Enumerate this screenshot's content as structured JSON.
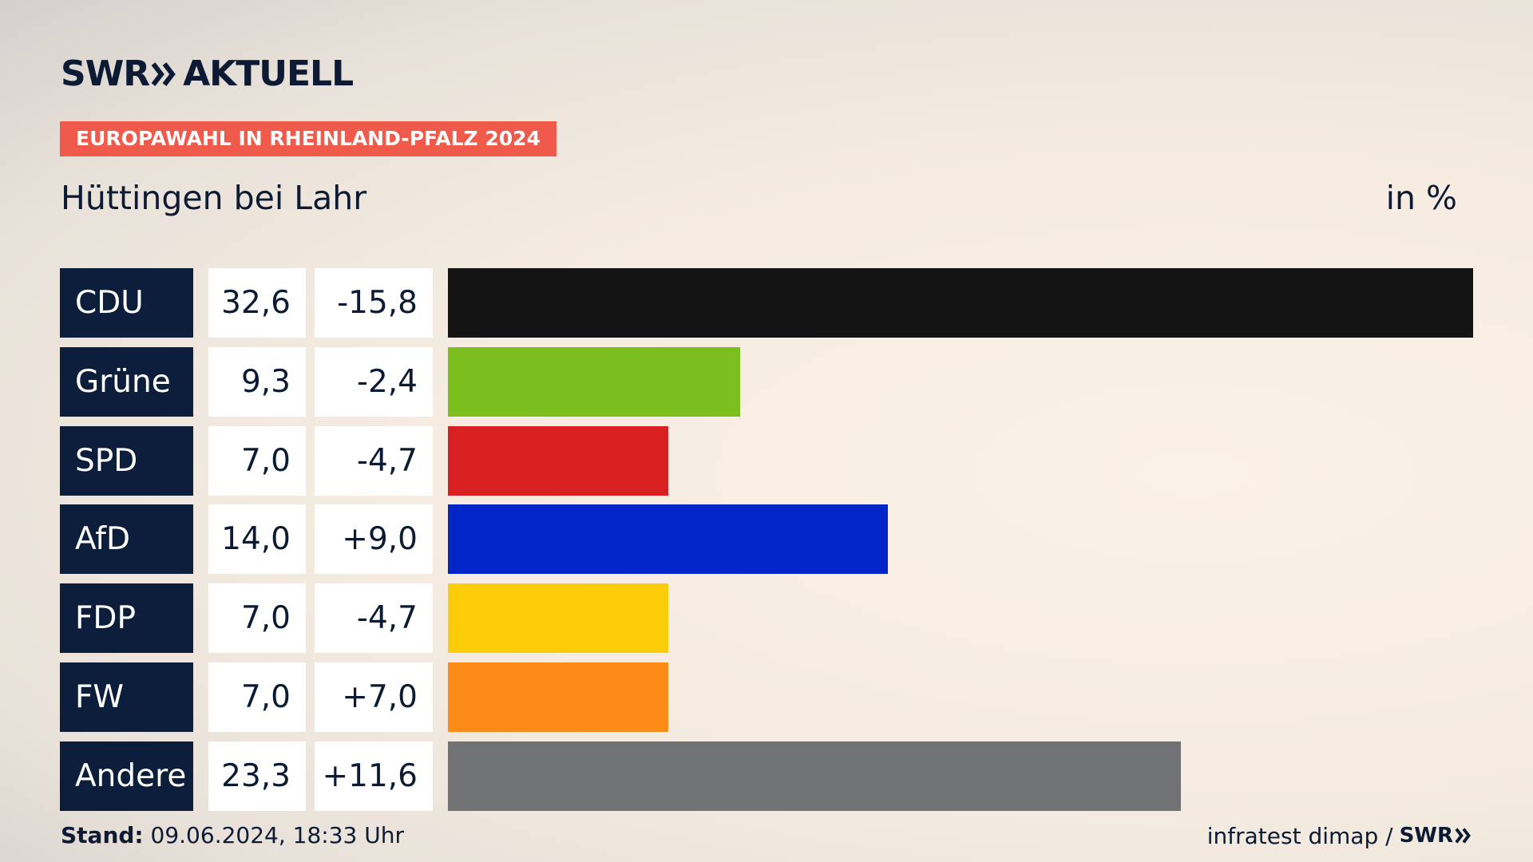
{
  "header": {
    "logo_text": "SWR",
    "logo_suffix": "AKTUELL",
    "badge": "EUROPAWAHL IN RHEINLAND-PFALZ 2024",
    "title": "Hüttingen bei Lahr",
    "unit": "in %"
  },
  "chart_data": {
    "type": "bar",
    "orientation": "horizontal",
    "title": "Hüttingen bei Lahr",
    "unit": "in %",
    "categories": [
      "CDU",
      "Grüne",
      "SPD",
      "AfD",
      "FDP",
      "FW",
      "Andere"
    ],
    "values": [
      32.6,
      9.3,
      7.0,
      14.0,
      7.0,
      7.0,
      23.3
    ],
    "value_labels": [
      "32,6",
      "9,3",
      "7,0",
      "14,0",
      "7,0",
      "7,0",
      "23,3"
    ],
    "changes": [
      -15.8,
      -2.4,
      -4.7,
      9.0,
      -4.7,
      7.0,
      11.6
    ],
    "change_labels": [
      "-15,8",
      "-2,4",
      "-4,7",
      "+9,0",
      "-4,7",
      "+7,0",
      "+11,6"
    ],
    "colors": [
      "#141414",
      "#7abf1e",
      "#d7201f",
      "#0125c6",
      "#fecd0a",
      "#fd8b18",
      "#717274"
    ],
    "xlim": [
      0,
      32.6
    ],
    "grid": false,
    "legend": "none"
  },
  "footer": {
    "stand_label": "Stand:",
    "stand_value": "09.06.2024, 18:33 Uhr",
    "source": "infratest dimap /",
    "source_logo": "SWR"
  }
}
